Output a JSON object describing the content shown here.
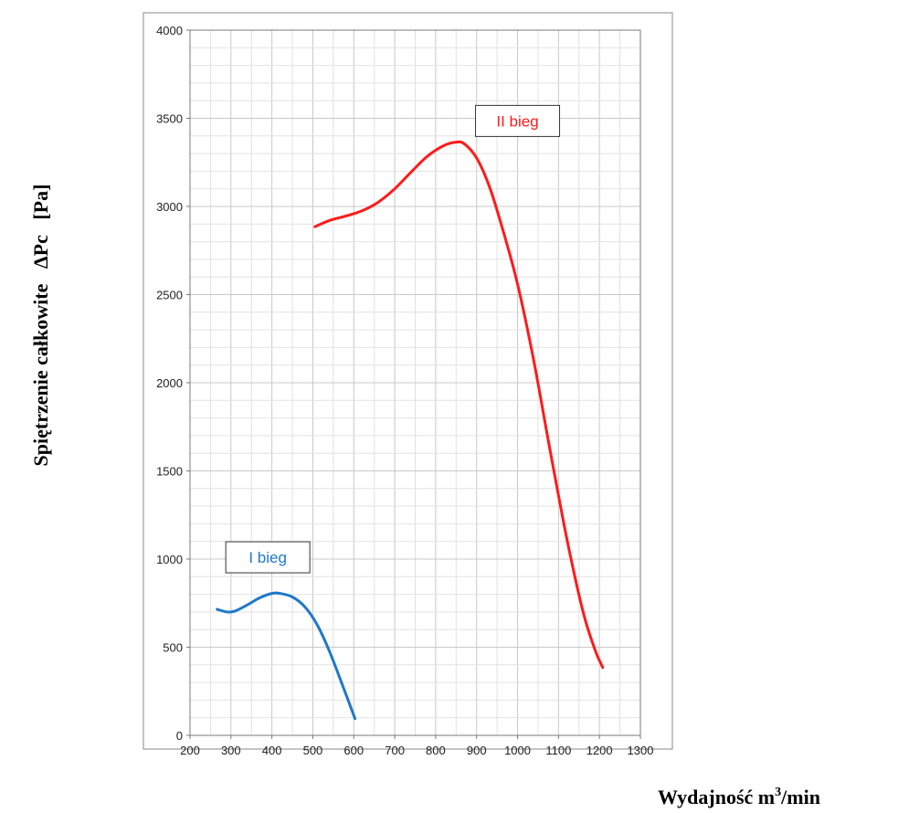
{
  "chart_data": {
    "type": "line",
    "title": "",
    "xlabel": "Wydajność m",
    "xlabel_sup": "3",
    "xlabel_suffix": "/min",
    "ylabel": "Spiętrzenie całkowite   ΔPc   [Pa]",
    "xlim": [
      200,
      1300
    ],
    "ylim": [
      0,
      4000
    ],
    "x_ticks": [
      200,
      300,
      400,
      500,
      600,
      700,
      800,
      900,
      1000,
      1100,
      1200,
      1300
    ],
    "y_ticks": [
      0,
      500,
      1000,
      1500,
      2000,
      2500,
      3000,
      3500,
      4000
    ],
    "grid": true,
    "series": [
      {
        "name": "I bieg",
        "color": "#1f78c8",
        "label_at": [
          390,
          1010
        ],
        "x": [
          266,
          290,
          310,
          340,
          370,
          400,
          420,
          450,
          480,
          510,
          540,
          570,
          603
        ],
        "y": [
          715,
          700,
          705,
          740,
          780,
          805,
          805,
          785,
          730,
          630,
          480,
          300,
          95
        ]
      },
      {
        "name": "II bieg",
        "color": "#ff1a1a",
        "label_at": [
          1000,
          3485
        ],
        "x": [
          505,
          540,
          580,
          620,
          660,
          700,
          740,
          780,
          820,
          850,
          870,
          900,
          930,
          960,
          1000,
          1040,
          1080,
          1120,
          1160,
          1190,
          1208
        ],
        "y": [
          2885,
          2920,
          2945,
          2975,
          3025,
          3100,
          3195,
          3285,
          3345,
          3365,
          3355,
          3275,
          3120,
          2900,
          2560,
          2120,
          1610,
          1120,
          700,
          480,
          385
        ]
      }
    ]
  }
}
